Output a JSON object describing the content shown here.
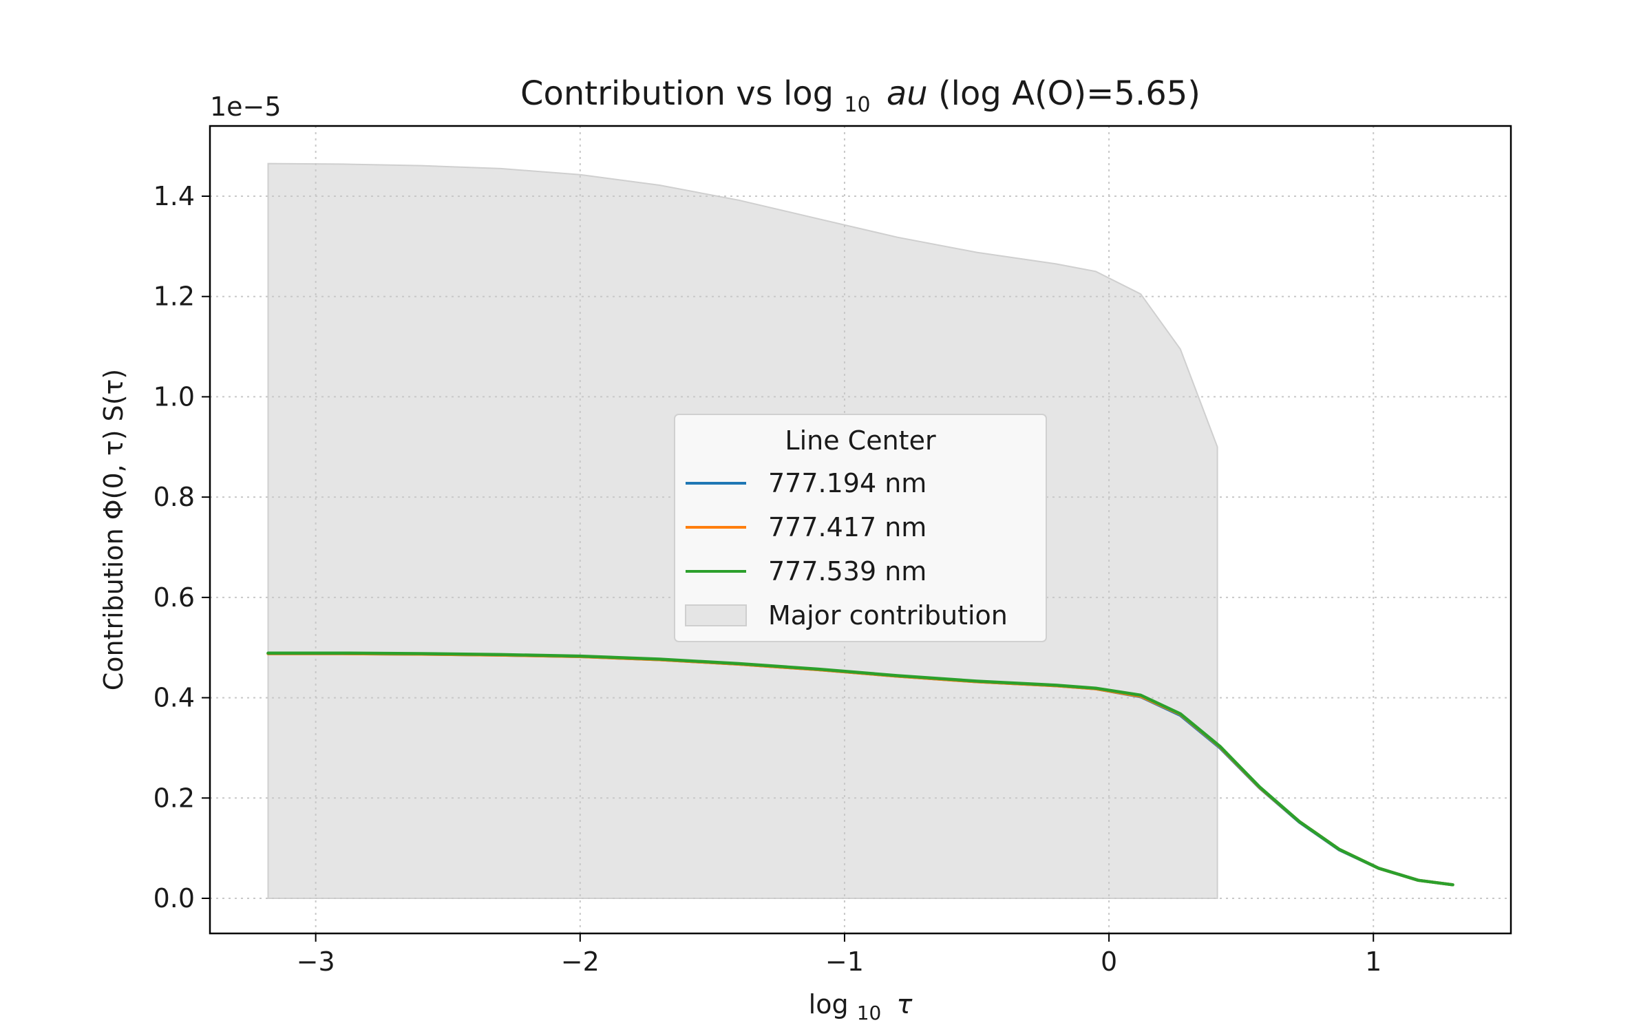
{
  "chart_data": {
    "type": "line",
    "title": "Contribution vs log",
    "title_subscript": "10",
    "title_symbol": "au",
    "title_suffix": " (log A(O)=5.65)",
    "xlabel_main": "log",
    "xlabel_sub": "10",
    "xlabel_symbol": "τ",
    "ylabel": "Contribution Φ(0, τ) S(τ)",
    "y_offset_text": "1e−5",
    "xlim": [
      -3.4,
      1.52
    ],
    "ylim": [
      -0.07,
      1.54
    ],
    "xticks": [
      -3,
      -2,
      -1,
      0,
      1
    ],
    "xtick_labels": [
      "−3",
      "−2",
      "−1",
      "0",
      "1"
    ],
    "yticks": [
      0.0,
      0.2,
      0.4,
      0.6,
      0.8,
      1.0,
      1.2,
      1.4
    ],
    "ytick_labels": [
      "0.0",
      "0.2",
      "0.4",
      "0.6",
      "0.8",
      "1.0",
      "1.2",
      "1.4"
    ],
    "grid": true,
    "legend": {
      "title": "Line Center",
      "placement": "center",
      "entries": [
        "777.194 nm",
        "777.417 nm",
        "777.539 nm",
        "Major contribution"
      ]
    },
    "colors": {
      "s1": "#1f77b4",
      "s2": "#ff7f0e",
      "s3": "#2ca02c",
      "fill": "#e5e5e5",
      "fill_edge": "#cfcfcf"
    },
    "x": [
      -3.18,
      -2.9,
      -2.6,
      -2.3,
      -2.0,
      -1.7,
      -1.4,
      -1.1,
      -0.8,
      -0.5,
      -0.2,
      -0.05,
      0.12,
      0.27,
      0.42,
      0.57,
      0.72,
      0.87,
      1.02,
      1.17,
      1.3
    ],
    "series": [
      {
        "name": "777.194 nm",
        "values": [
          0.488,
          0.488,
          0.487,
          0.485,
          0.482,
          0.476,
          0.467,
          0.456,
          0.443,
          0.432,
          0.424,
          0.418,
          0.402,
          0.365,
          0.3,
          0.22,
          0.152,
          0.097,
          0.06,
          0.036,
          0.027
        ]
      },
      {
        "name": "777.417 nm",
        "values": [
          0.488,
          0.488,
          0.487,
          0.485,
          0.482,
          0.476,
          0.467,
          0.456,
          0.443,
          0.432,
          0.424,
          0.418,
          0.403,
          0.367,
          0.302,
          0.221,
          0.153,
          0.098,
          0.06,
          0.036,
          0.027
        ]
      },
      {
        "name": "777.539 nm",
        "values": [
          0.489,
          0.489,
          0.488,
          0.486,
          0.483,
          0.477,
          0.468,
          0.457,
          0.444,
          0.433,
          0.425,
          0.419,
          0.405,
          0.368,
          0.303,
          0.222,
          0.153,
          0.098,
          0.06,
          0.036,
          0.027
        ]
      }
    ],
    "major_contribution": {
      "name": "Major contribution",
      "x": [
        -3.18,
        -2.9,
        -2.6,
        -2.3,
        -2.0,
        -1.7,
        -1.4,
        -1.1,
        -0.8,
        -0.5,
        -0.2,
        -0.05,
        0.12,
        0.27,
        0.41
      ],
      "upper": [
        1.465,
        1.464,
        1.461,
        1.455,
        1.443,
        1.422,
        1.392,
        1.355,
        1.318,
        1.288,
        1.265,
        1.25,
        1.205,
        1.095,
        0.9
      ],
      "lower": 0.0
    }
  }
}
